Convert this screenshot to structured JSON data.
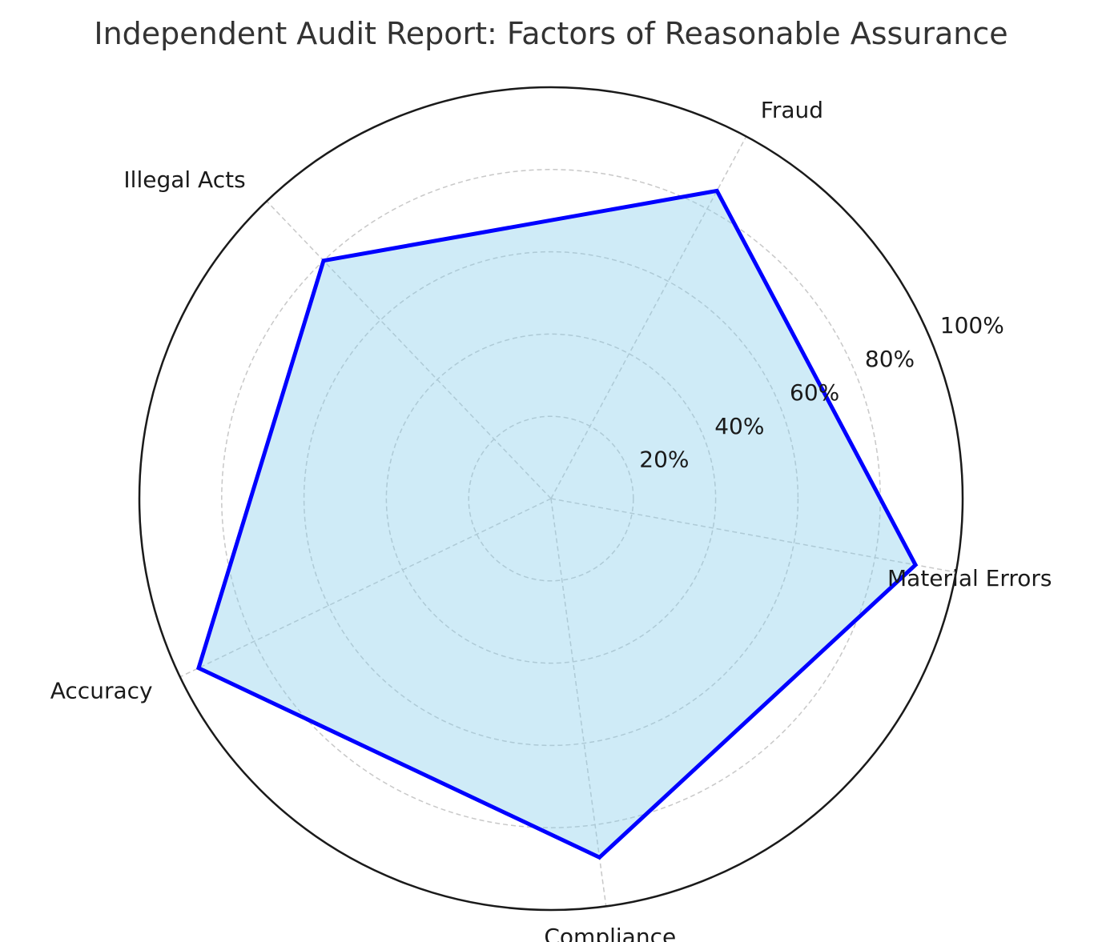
{
  "chart_data": {
    "type": "radar",
    "title": "Independent Audit Report: Factors of Reasonable Assurance",
    "categories": [
      "Material Errors",
      "Fraud",
      "Illegal Acts",
      "Accuracy",
      "Compliance"
    ],
    "series": [
      {
        "values": [
          90,
          85,
          80,
          95,
          88
        ]
      }
    ],
    "rlim": [
      0,
      100
    ],
    "r_ticks": [
      20,
      40,
      60,
      80,
      100
    ],
    "r_tick_labels": [
      "20%",
      "40%",
      "60%",
      "80%",
      "100%"
    ],
    "grid": true,
    "colors": {
      "line": "#0000ff",
      "fill": "#87ceeb",
      "grid": "#c8c8c8",
      "outer_ring": "#1a1a1a"
    }
  }
}
